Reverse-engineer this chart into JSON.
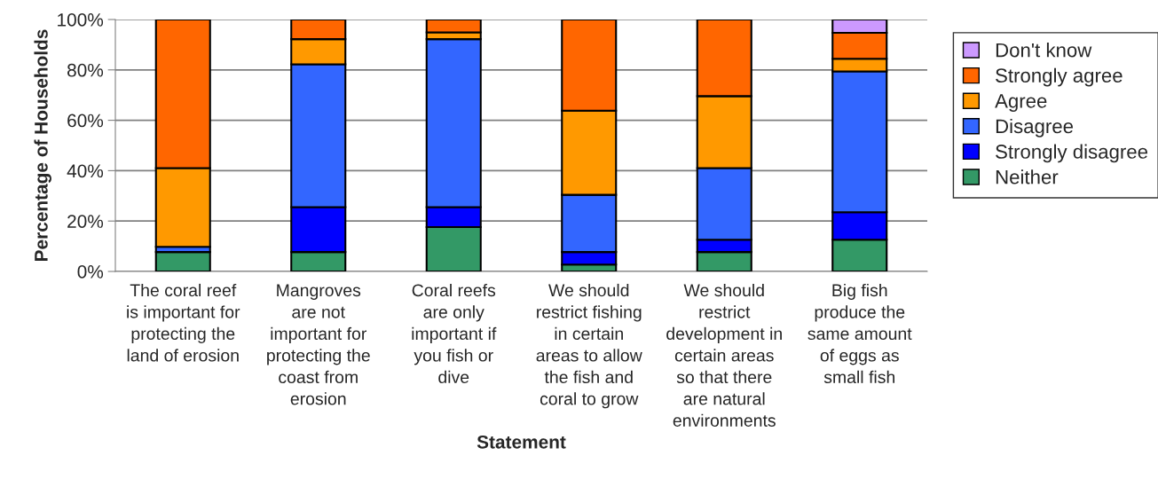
{
  "chart_data": {
    "type": "bar",
    "stacked": true,
    "xlabel": "Statement",
    "ylabel": "Percentage of Households",
    "categories": [
      "The coral reef\nis important for\nprotecting the\nland of erosion",
      "Mangroves\nare not\nimportant for\nprotecting the\ncoast from\nerosion",
      "Coral reefs\nare only\nimportant if\nyou fish or\ndive",
      "We should\nrestrict fishing\nin certain\nareas to allow\nthe fish and\ncoral to grow",
      "We should\nrestrict\ndevelopment in\ncertain areas\nso that there\nare natural\nenvironments",
      "Big fish\nproduce the\nsame amount\nof eggs as\nsmall fish"
    ],
    "series": [
      {
        "name": "Neither",
        "color": "#339966",
        "values": [
          7.7,
          7.7,
          17.6,
          2.7,
          7.7,
          12.6
        ]
      },
      {
        "name": "Strongly disagree",
        "color": "#0000ff",
        "values": [
          null,
          17.8,
          7.9,
          5.0,
          4.9,
          10.9
        ]
      },
      {
        "name": "Disagree",
        "color": "#3366ff",
        "values": [
          2.1,
          56.7,
          66.7,
          22.7,
          28.4,
          55.9
        ]
      },
      {
        "name": "Agree",
        "color": "#ff9900",
        "values": [
          31.2,
          10.0,
          2.7,
          33.4,
          28.6,
          5.0
        ]
      },
      {
        "name": "Strongly agree",
        "color": "#ff6600",
        "values": [
          59.0,
          7.8,
          5.1,
          36.2,
          30.4,
          10.3
        ]
      },
      {
        "name": "Don't know",
        "color": "#cc99ff",
        "values": [
          null,
          null,
          null,
          null,
          null,
          5.3
        ]
      }
    ],
    "ylim": [
      0,
      100
    ],
    "yticks": [
      {
        "value": 0,
        "label": "0%"
      },
      {
        "value": 20,
        "label": "20%"
      },
      {
        "value": 40,
        "label": "40%"
      },
      {
        "value": 60,
        "label": "60%"
      },
      {
        "value": 80,
        "label": "80%"
      },
      {
        "value": 100,
        "label": "100%"
      }
    ],
    "grid": "y",
    "legend": "right"
  }
}
